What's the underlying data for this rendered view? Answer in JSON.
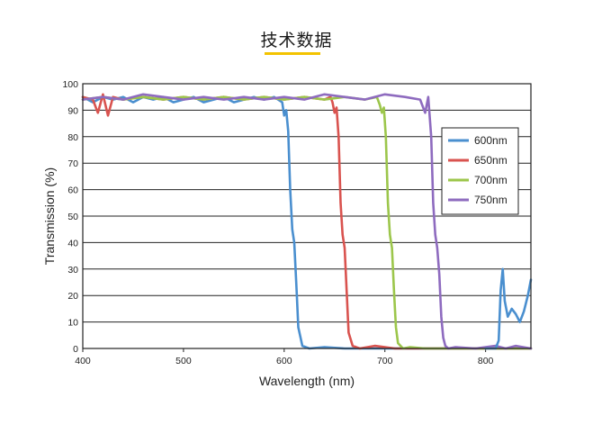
{
  "page": {
    "heading": "技术数据"
  },
  "chart_data": {
    "type": "line",
    "title": "",
    "xlabel": "Wavelength (nm)",
    "ylabel": "Transmission (%)",
    "xlim": [
      400,
      845
    ],
    "ylim": [
      0,
      100
    ],
    "xticks": [
      400,
      500,
      600,
      700,
      800
    ],
    "yticks": [
      0,
      10,
      20,
      30,
      40,
      50,
      60,
      70,
      80,
      90,
      100
    ],
    "grid": "horizontal",
    "legend_position": "right",
    "series": [
      {
        "name": "600nm",
        "color": "#4a8fcf",
        "x": [
          400,
          410,
          420,
          430,
          440,
          450,
          460,
          470,
          480,
          490,
          500,
          510,
          520,
          530,
          540,
          550,
          560,
          570,
          580,
          590,
          598,
          600,
          602,
          604,
          606,
          608,
          610,
          612,
          614,
          618,
          625,
          640,
          660,
          700,
          750,
          800,
          845
        ],
        "y": [
          95,
          93,
          95,
          94,
          95,
          93,
          95,
          94,
          95,
          93,
          94,
          95,
          93,
          94,
          95,
          93,
          94,
          95,
          94,
          95,
          93,
          88,
          90,
          82,
          60,
          45,
          40,
          25,
          8,
          1,
          0,
          0.5,
          0,
          0,
          0,
          0,
          0
        ]
      },
      {
        "name": "650nm",
        "color": "#d9534f",
        "x": [
          400,
          410,
          415,
          420,
          425,
          430,
          440,
          460,
          480,
          500,
          520,
          540,
          560,
          580,
          600,
          620,
          640,
          646,
          648,
          650,
          652,
          654,
          656,
          658,
          660,
          662,
          664,
          668,
          675,
          690,
          710,
          750,
          800,
          845
        ],
        "y": [
          95,
          94,
          89,
          96,
          88,
          95,
          94,
          95,
          94,
          95,
          94,
          95,
          94,
          95,
          94,
          95,
          94,
          95,
          93,
          89,
          91,
          80,
          55,
          43,
          38,
          22,
          6,
          1,
          0,
          1,
          0,
          0,
          0,
          0
        ]
      },
      {
        "name": "700nm",
        "color": "#9cc64b",
        "x": [
          400,
          420,
          440,
          460,
          480,
          500,
          520,
          540,
          560,
          580,
          600,
          620,
          640,
          660,
          680,
          692,
          695,
          697,
          699,
          701,
          703,
          705,
          707,
          709,
          711,
          713,
          718,
          725,
          740,
          760,
          800,
          845
        ],
        "y": [
          94,
          95,
          94,
          95,
          94,
          95,
          94,
          95,
          94,
          95,
          94,
          95,
          94,
          95,
          94,
          95,
          92,
          89,
          91,
          80,
          55,
          43,
          38,
          22,
          8,
          2,
          0,
          0.5,
          0,
          0,
          0,
          0
        ]
      },
      {
        "name": "750nm",
        "color": "#8e6bbf",
        "x": [
          400,
          420,
          440,
          460,
          480,
          500,
          520,
          540,
          560,
          580,
          600,
          620,
          640,
          660,
          680,
          700,
          720,
          735,
          740,
          743,
          746,
          748,
          750,
          752,
          754,
          756,
          758,
          760,
          763,
          770,
          790,
          810,
          820,
          830,
          845
        ],
        "y": [
          94,
          95,
          94,
          96,
          95,
          94,
          95,
          94,
          95,
          94,
          95,
          94,
          96,
          95,
          94,
          96,
          95,
          94,
          89,
          95,
          80,
          55,
          43,
          38,
          28,
          12,
          4,
          1,
          0,
          0.5,
          0,
          1,
          0,
          1,
          0
        ]
      },
      {
        "name": "",
        "color": "#4a8fcf",
        "x": [
          800,
          810,
          813,
          815,
          817,
          819,
          822,
          826,
          830,
          834,
          838,
          842,
          845
        ],
        "y": [
          0,
          0,
          3,
          22,
          30,
          18,
          12,
          15,
          13,
          10,
          14,
          20,
          26
        ]
      }
    ]
  }
}
